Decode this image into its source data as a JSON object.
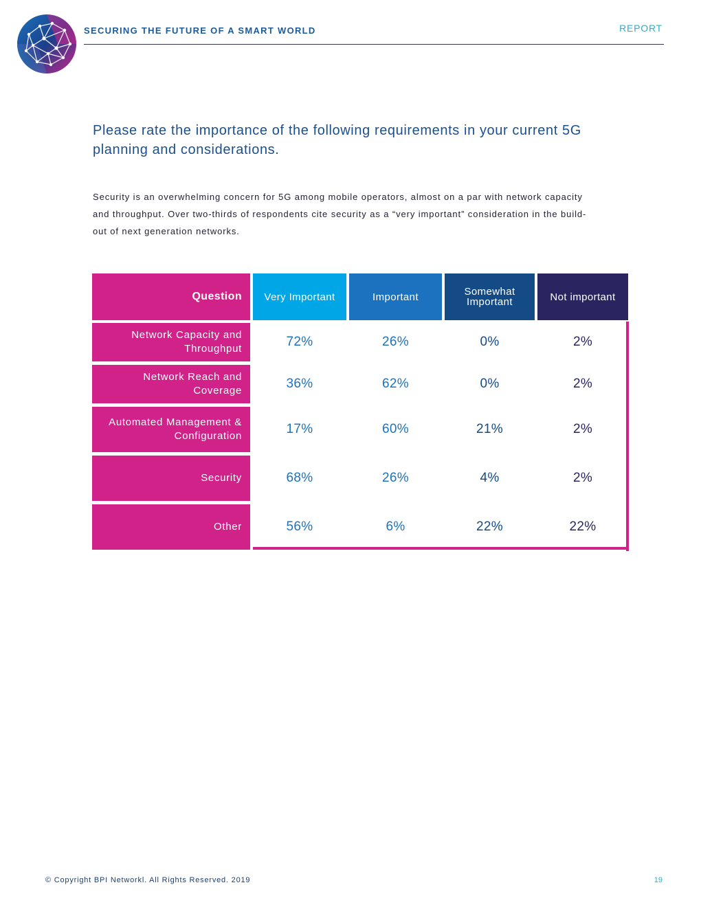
{
  "header": {
    "title": "SECURING THE FUTURE OF A SMART WORLD",
    "label": "REPORT"
  },
  "heading": "Please rate the importance of the following requirements in your current 5G planning and considerations.",
  "intro": "Security is an overwhelming concern for 5G among mobile operators, almost on a par with network capacity and throughput. Over two-thirds of respondents cite security as a “very important” consideration in the build-out of next generation networks.",
  "table": {
    "question_header": "Question",
    "columns": [
      "Very Important",
      "Important",
      "Somewhat Important",
      "Not important"
    ],
    "rows": [
      {
        "question": "Network Capacity and Throughput",
        "values": [
          "72%",
          "26%",
          "0%",
          "2%"
        ]
      },
      {
        "question": "Network Reach and Coverage",
        "values": [
          "36%",
          "62%",
          "0%",
          "2%"
        ]
      },
      {
        "question": "Automated Management & Configuration",
        "values": [
          "17%",
          "60%",
          "21%",
          "2%"
        ]
      },
      {
        "question": "Security",
        "values": [
          "68%",
          "26%",
          "4%",
          "2%"
        ]
      },
      {
        "question": "Other",
        "values": [
          "56%",
          "6%",
          "22%",
          "22%"
        ]
      }
    ]
  },
  "footer": {
    "copyright": "© Copyright BPI Networkl. All Rights Reserved. 2019",
    "page_number": "19"
  },
  "colors": {
    "magenta": "#d1228a",
    "very_important": "#00a6e6",
    "important": "#1c72be",
    "somewhat_important": "#144a86",
    "not_important": "#2a2561"
  }
}
